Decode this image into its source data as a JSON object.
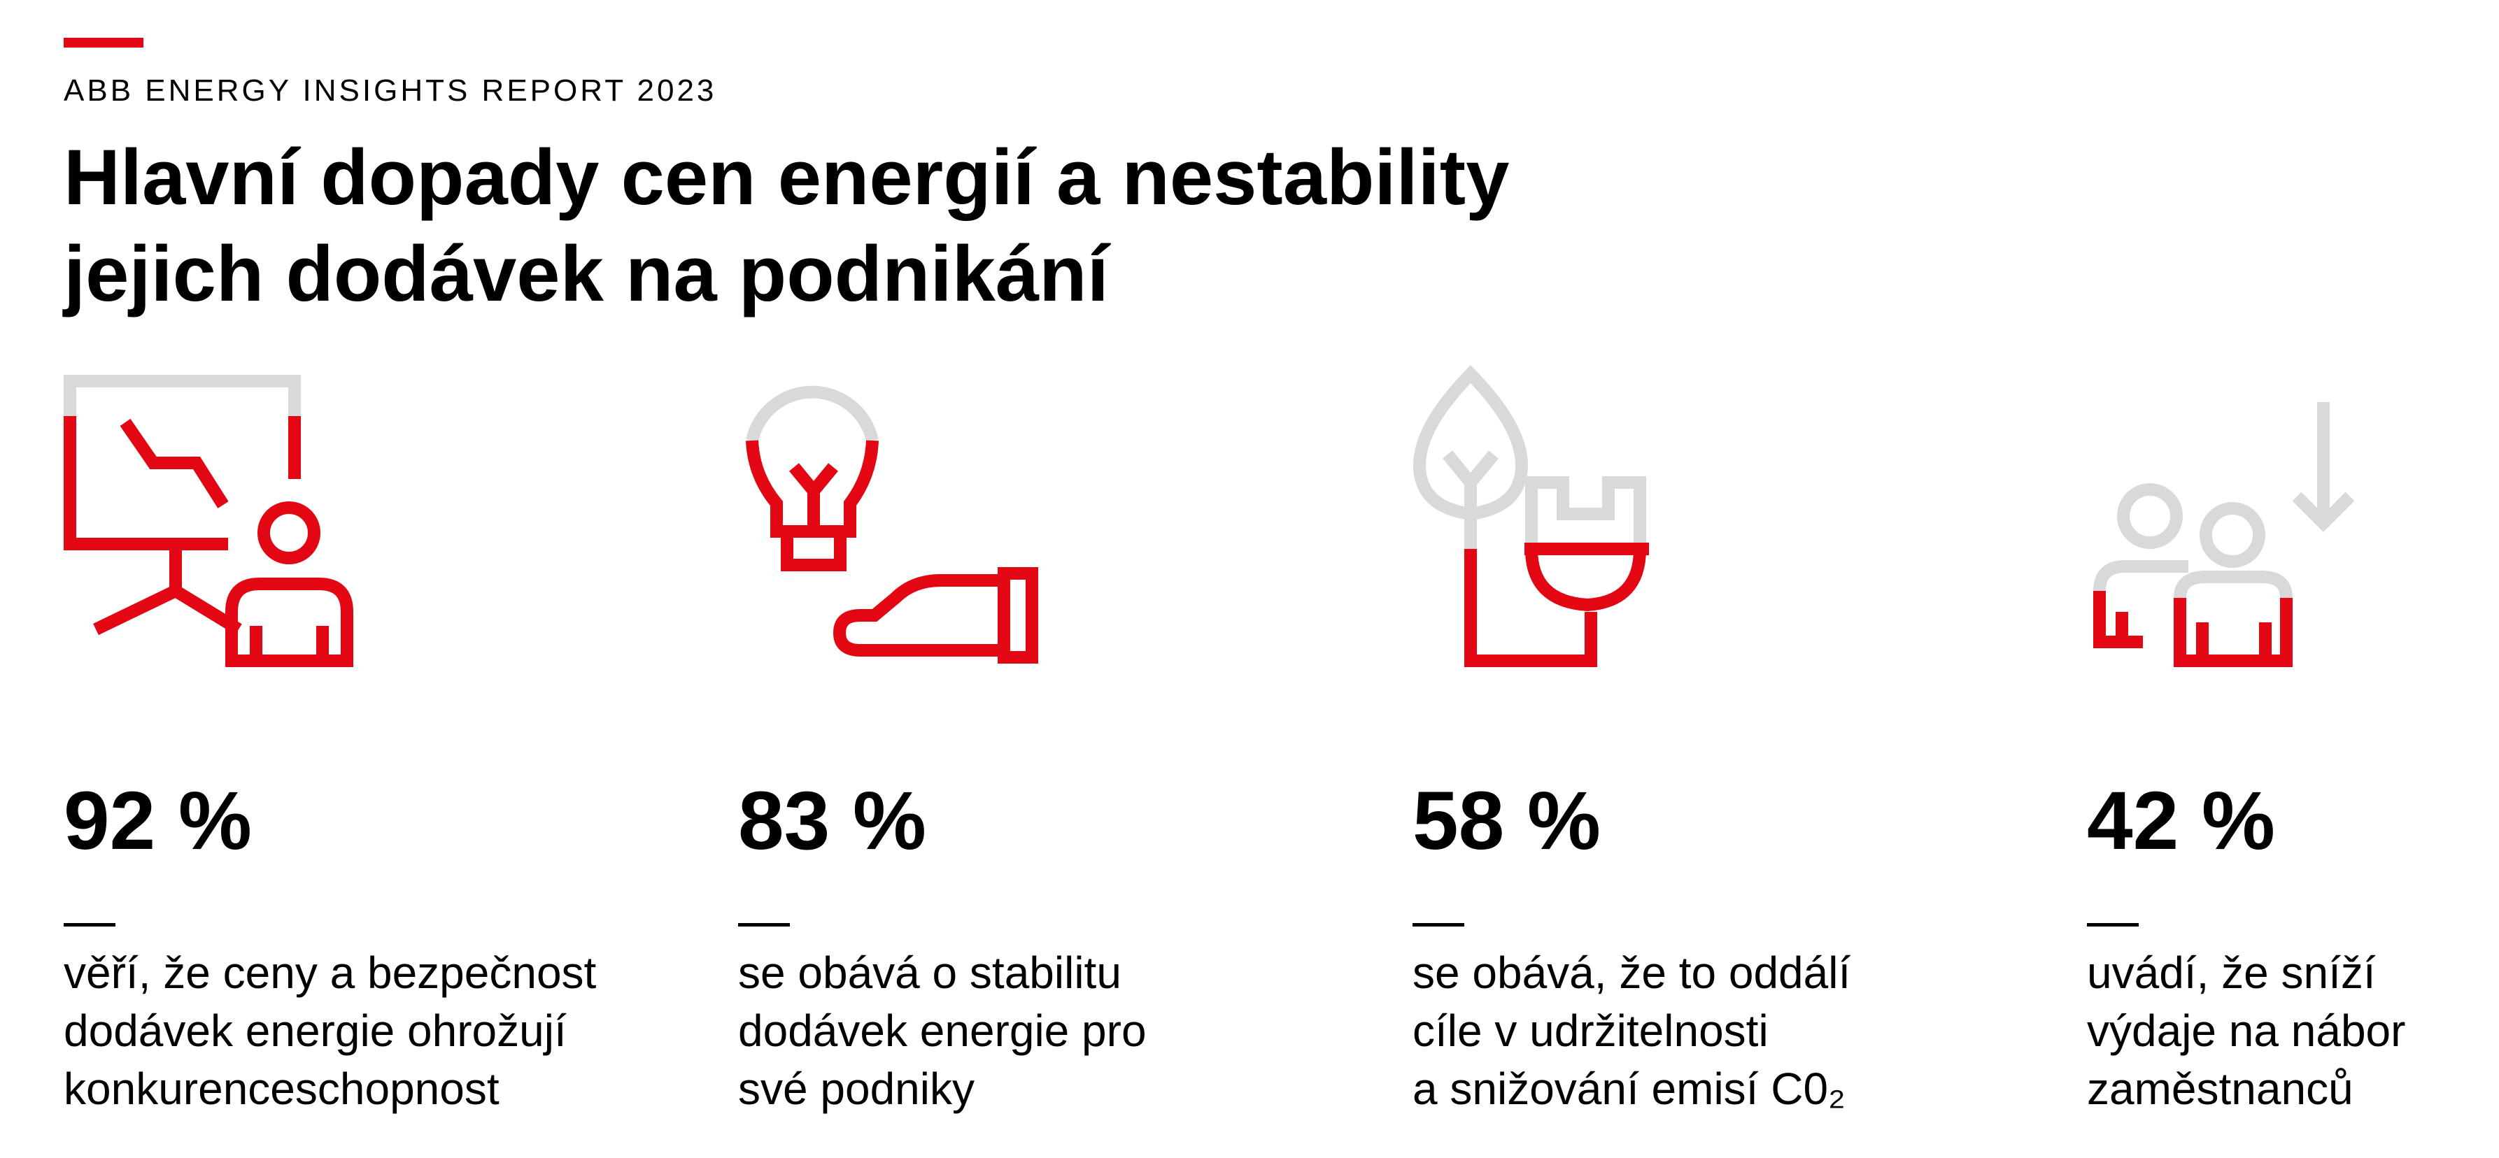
{
  "header": {
    "eyebrow": "ABB ENERGY INSIGHTS REPORT 2023",
    "title_line1": "Hlavní dopady cen energií a nestability",
    "title_line2": "jejich dodávek na podnikání"
  },
  "colors": {
    "accent": "#e30613",
    "icon_grey": "#d9d9d9",
    "text": "#000000"
  },
  "stats": [
    {
      "icon": "presentation-person-icon",
      "value": "92 %",
      "lines": [
        "věří, že ceny a bezpečnost",
        "dodávek energie ohrožují",
        "konkurenceschopnost"
      ]
    },
    {
      "icon": "lightbulb-hand-icon",
      "value": "83 %",
      "lines": [
        "se obává o stabilitu",
        "dodávek energie pro",
        "své podniky"
      ]
    },
    {
      "icon": "leaf-plug-icon",
      "value": "58 %",
      "lines": [
        "se obává, že to oddálí",
        "cíle v udržitelnosti",
        "a snižování emisí C0₂"
      ]
    },
    {
      "icon": "people-decrease-icon",
      "value": "42 %",
      "lines": [
        "uvádí, že sníží",
        "výdaje na nábor",
        "zaměstnanců"
      ]
    }
  ]
}
